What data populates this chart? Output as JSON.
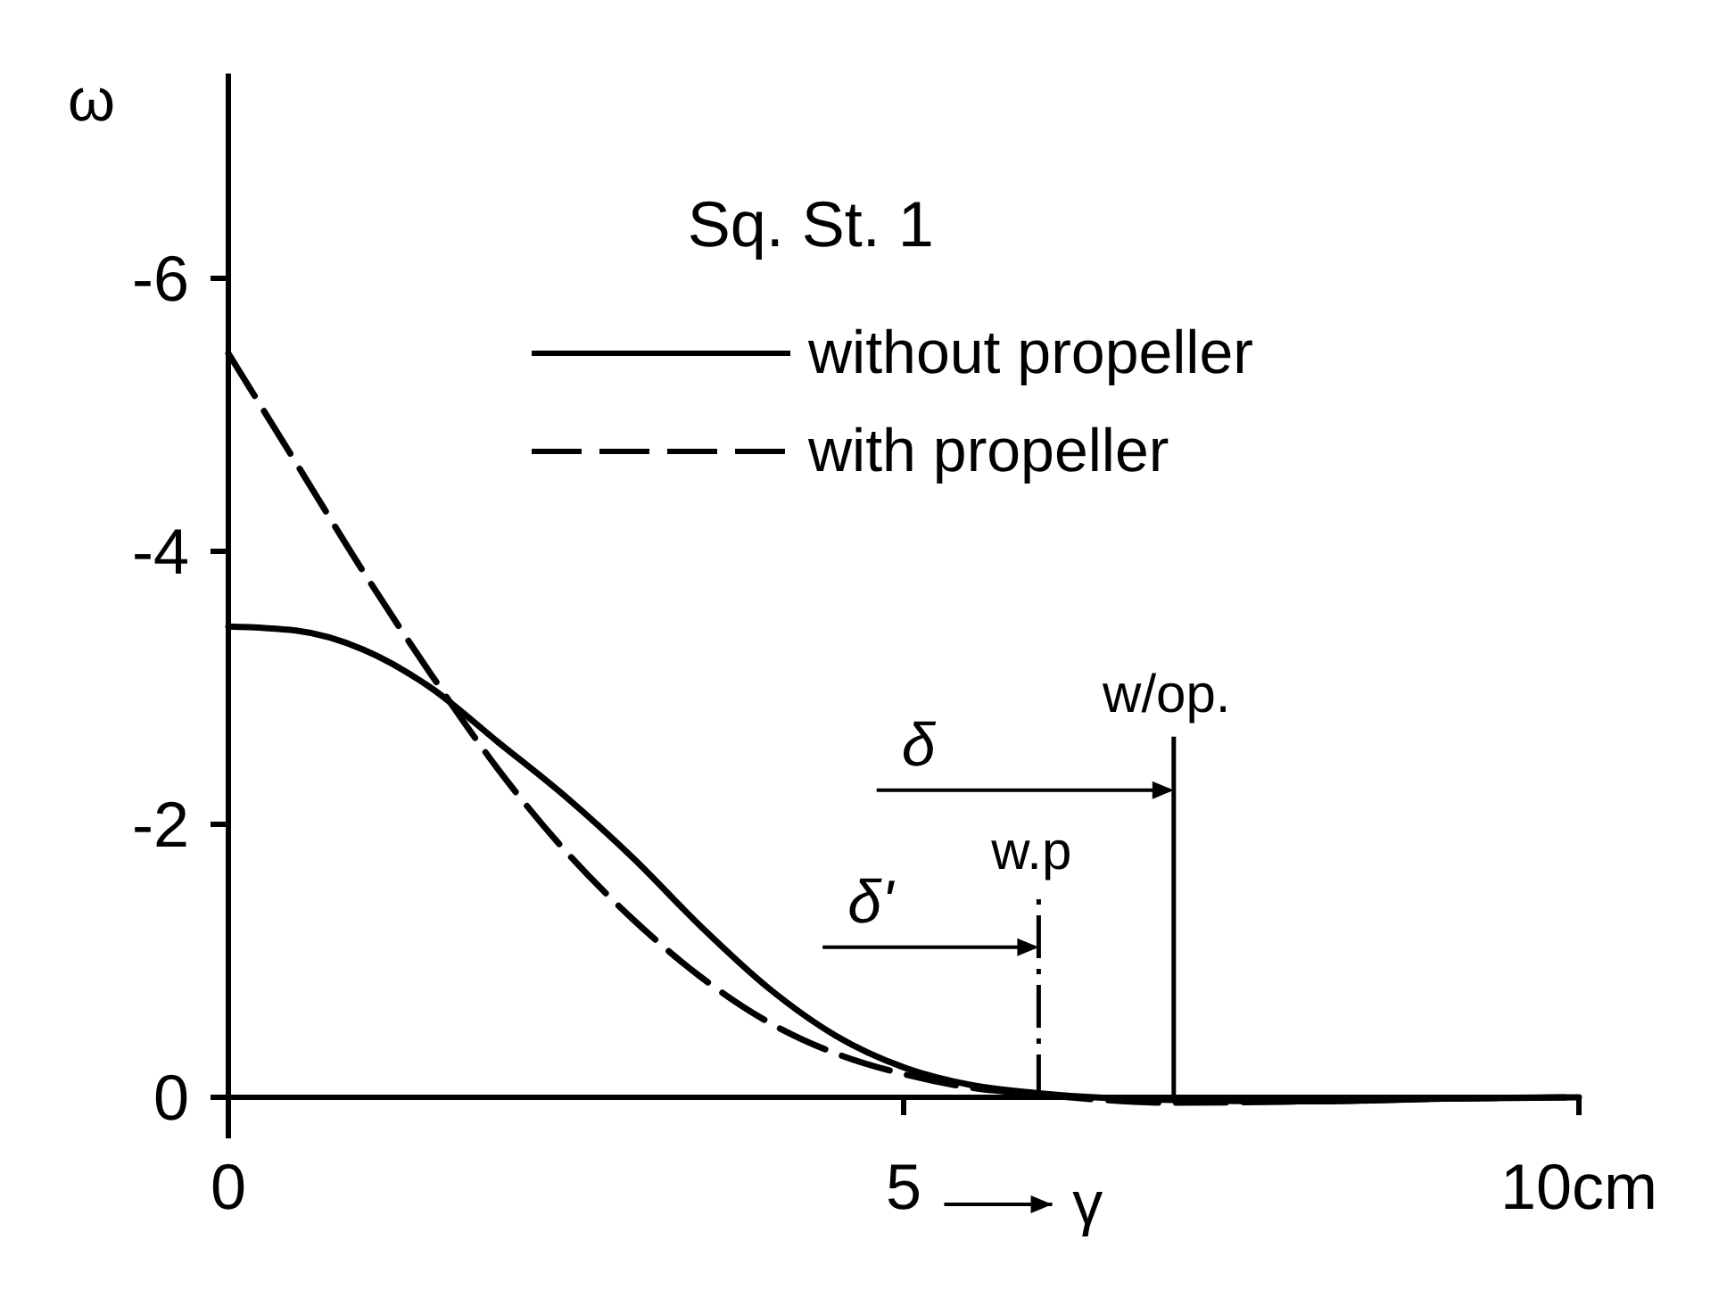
{
  "chart_data": {
    "type": "line",
    "title": "Sq. St. 1",
    "xlabel": "γ",
    "ylabel": "ω",
    "x": [
      0,
      0.5,
      1,
      1.5,
      2,
      2.5,
      3,
      3.5,
      4,
      4.5,
      5,
      5.5,
      6,
      7,
      8,
      9,
      10
    ],
    "series": [
      {
        "name": "without propeller",
        "color": "#000000",
        "line_style": "solid",
        "values": [
          -3.45,
          -3.42,
          -3.28,
          -3.0,
          -2.6,
          -2.2,
          -1.75,
          -1.25,
          -0.8,
          -0.45,
          -0.22,
          -0.09,
          -0.03,
          0.02,
          0.03,
          0.01,
          0
        ]
      },
      {
        "name": "with propeller",
        "color": "#000000",
        "line_style": "dashed",
        "values": [
          -5.45,
          -4.65,
          -3.85,
          -3.1,
          -2.4,
          -1.8,
          -1.3,
          -0.88,
          -0.55,
          -0.32,
          -0.17,
          -0.07,
          -0.02,
          0.04,
          0.03,
          0.01,
          0
        ]
      }
    ],
    "xlim": [
      0,
      10
    ],
    "ylim": [
      0.3,
      -7.5
    ],
    "xticks": [
      0,
      5,
      {
        "value": 10,
        "label": "10cm"
      }
    ],
    "yticks": [
      {
        "value": 0,
        "label": "0"
      },
      {
        "value": -2,
        "label": "-2"
      },
      {
        "value": -4,
        "label": "-4"
      },
      {
        "value": -6,
        "label": "-6"
      }
    ],
    "ref_lines": [
      {
        "axis": "x",
        "value": 7,
        "label": "w/op.",
        "line_style": "solid"
      },
      {
        "axis": "x",
        "value": 6,
        "label": "w.p",
        "line_style": "dashed"
      }
    ],
    "annotations": [
      {
        "text": "δ",
        "x": 7,
        "y": -2.25
      },
      {
        "text": "δ'",
        "x": 6,
        "y": -1.1
      }
    ],
    "legend": "top right"
  }
}
